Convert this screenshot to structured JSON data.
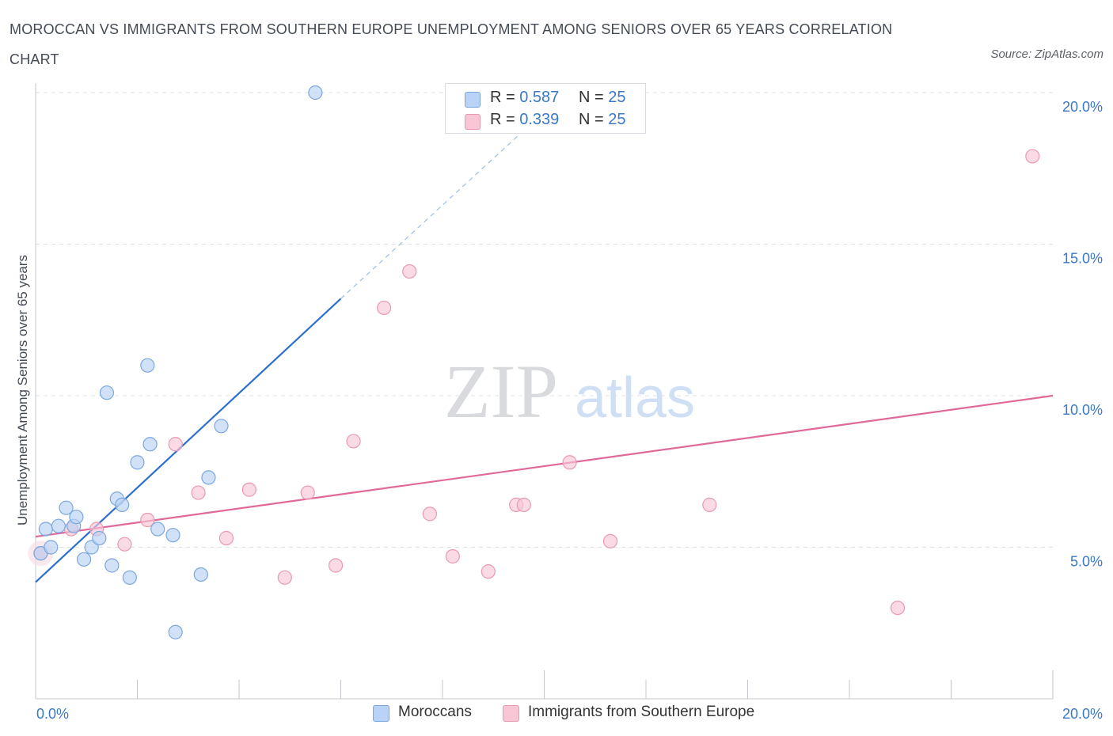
{
  "title": "MOROCCAN VS IMMIGRANTS FROM SOUTHERN EUROPE UNEMPLOYMENT AMONG SENIORS OVER 65 YEARS CORRELATION CHART",
  "source": "Source: ZipAtlas.com",
  "watermark": {
    "zip": "ZIP",
    "atlas": "atlas"
  },
  "legend": {
    "r_label": "R = ",
    "n_label": "N = ",
    "rows": [
      {
        "r": "0.587",
        "n": "25"
      },
      {
        "r": "0.339",
        "n": "25"
      }
    ]
  },
  "colors": {
    "moroccans_fill": "#b8d3f5",
    "moroccans_stroke": "#7aa7de",
    "moroccans_line": "#2d6fce",
    "immigrants_fill": "#f8c6d5",
    "immigrants_stroke": "#e89ab3",
    "immigrants_line": "#e0689a",
    "tick_label": "#3a78c9",
    "grid": "#dde0e5"
  },
  "chart_data": {
    "type": "scatter",
    "title": "MOROCCAN VS IMMIGRANTS FROM SOUTHERN EUROPE UNEMPLOYMENT AMONG SENIORS OVER 65 YEARS CORRELATION CHART",
    "xlabel": "",
    "ylabel": "Unemployment Among Seniors over 65 years",
    "xlim": [
      0,
      20
    ],
    "ylim": [
      0,
      20
    ],
    "x_tick_labels": [
      "0.0%",
      "20.0%"
    ],
    "y_ticks": [
      {
        "value": 5,
        "label": "5.0%"
      },
      {
        "value": 10,
        "label": "10.0%"
      },
      {
        "value": 15,
        "label": "15.0%"
      },
      {
        "value": 20,
        "label": "20.0%"
      }
    ],
    "series": [
      {
        "name": "Moroccans",
        "points": [
          {
            "x": 0.1,
            "y": 4.8
          },
          {
            "x": 0.2,
            "y": 5.6
          },
          {
            "x": 0.3,
            "y": 5.0
          },
          {
            "x": 0.45,
            "y": 5.7
          },
          {
            "x": 0.6,
            "y": 6.3
          },
          {
            "x": 0.75,
            "y": 5.7
          },
          {
            "x": 0.8,
            "y": 6.0
          },
          {
            "x": 0.95,
            "y": 4.6
          },
          {
            "x": 1.1,
            "y": 5.0
          },
          {
            "x": 1.25,
            "y": 5.3
          },
          {
            "x": 1.4,
            "y": 10.1
          },
          {
            "x": 1.5,
            "y": 4.4
          },
          {
            "x": 1.6,
            "y": 6.6
          },
          {
            "x": 1.7,
            "y": 6.4
          },
          {
            "x": 1.85,
            "y": 4.0
          },
          {
            "x": 2.0,
            "y": 7.8
          },
          {
            "x": 2.2,
            "y": 11.0
          },
          {
            "x": 2.25,
            "y": 8.4
          },
          {
            "x": 2.4,
            "y": 5.6
          },
          {
            "x": 2.7,
            "y": 5.4
          },
          {
            "x": 2.75,
            "y": 2.2
          },
          {
            "x": 3.25,
            "y": 4.1
          },
          {
            "x": 3.4,
            "y": 7.3
          },
          {
            "x": 3.65,
            "y": 9.0
          },
          {
            "x": 5.5,
            "y": 20.0
          }
        ],
        "trend": {
          "x0": 0,
          "y0": 3.85,
          "x1": 6.0,
          "y1": 13.2,
          "dash_to_x": 9.5,
          "dash_to_y": 18.6
        }
      },
      {
        "name": "Immigrants from Southern Europe",
        "points": [
          {
            "x": 0.1,
            "y": 4.8
          },
          {
            "x": 0.7,
            "y": 5.6
          },
          {
            "x": 1.2,
            "y": 5.6
          },
          {
            "x": 1.75,
            "y": 5.1
          },
          {
            "x": 2.2,
            "y": 5.9
          },
          {
            "x": 2.75,
            "y": 8.4
          },
          {
            "x": 3.2,
            "y": 6.8
          },
          {
            "x": 3.75,
            "y": 5.3
          },
          {
            "x": 4.2,
            "y": 6.9
          },
          {
            "x": 4.9,
            "y": 4.0
          },
          {
            "x": 5.35,
            "y": 6.8
          },
          {
            "x": 5.9,
            "y": 4.4
          },
          {
            "x": 6.25,
            "y": 8.5
          },
          {
            "x": 6.85,
            "y": 12.9
          },
          {
            "x": 7.35,
            "y": 14.1
          },
          {
            "x": 7.75,
            "y": 6.1
          },
          {
            "x": 8.2,
            "y": 4.7
          },
          {
            "x": 8.9,
            "y": 4.2
          },
          {
            "x": 9.45,
            "y": 6.4
          },
          {
            "x": 9.6,
            "y": 6.4
          },
          {
            "x": 10.5,
            "y": 7.8
          },
          {
            "x": 11.3,
            "y": 5.2
          },
          {
            "x": 13.25,
            "y": 6.4
          },
          {
            "x": 16.95,
            "y": 3.0
          },
          {
            "x": 19.6,
            "y": 17.9
          }
        ],
        "trend": {
          "x0": 0,
          "y0": 5.35,
          "x1": 20,
          "y1": 10.0
        }
      }
    ]
  }
}
